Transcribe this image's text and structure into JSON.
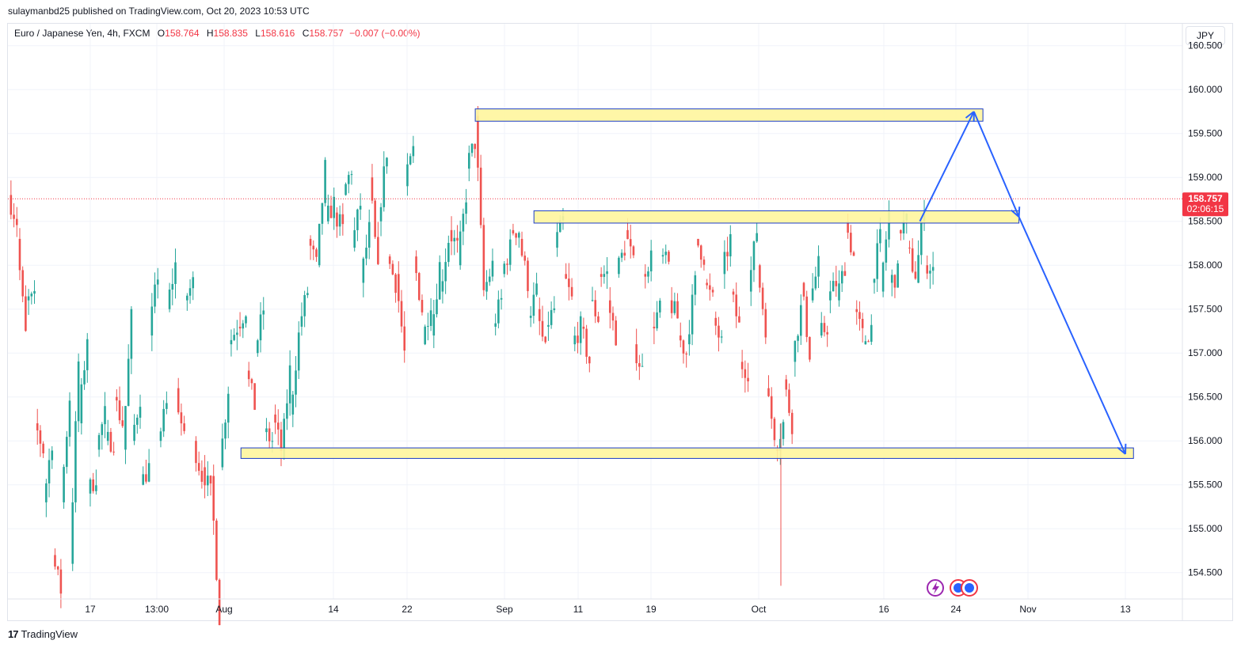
{
  "publisher_line": "sulaymanbd25 published on TradingView.com, Oct 20, 2023 10:53 UTC",
  "legend": {
    "symbol": "Euro / Japanese Yen, 4h, FXCM",
    "o_label": "O",
    "o_value": "158.764",
    "h_label": "H",
    "h_value": "158.835",
    "l_label": "L",
    "l_value": "158.616",
    "c_label": "C",
    "c_value": "158.757",
    "change": "−0.007 (−0.00%)"
  },
  "currency_button": "JPY",
  "price_label": {
    "price": "158.757",
    "countdown": "02:06:15"
  },
  "brand": {
    "logo": "17",
    "name": "TradingView"
  },
  "colors": {
    "up": "#26a69a",
    "down": "#ef5350",
    "zone_fill": "#fff59d",
    "zone_stroke": "#1a3cc8",
    "projection": "#2962ff",
    "price_line": "#f23645"
  },
  "icons": [
    "lightning-icon",
    "calendar-event-icon",
    "calendar-event-icon"
  ],
  "chart_data": {
    "type": "candlestick",
    "symbol": "EURJPY",
    "timeframe": "4h",
    "y_range": [
      154.2,
      160.75
    ],
    "y_ticks": [
      "160.500",
      "160.000",
      "159.500",
      "159.000",
      "158.500",
      "158.000",
      "157.500",
      "157.000",
      "156.500",
      "156.000",
      "155.500",
      "155.000",
      "154.500"
    ],
    "x_ticks": [
      "17",
      "13:00",
      "Aug",
      "14",
      "22",
      "Sep",
      "11",
      "19",
      "Oct",
      "16",
      "24",
      "Nov",
      "13"
    ],
    "last_price": 158.757,
    "path_points": [
      [
        158.8,
        158.5
      ],
      [
        158.3,
        157.2
      ],
      [
        157.6,
        157.6
      ],
      [
        156.2,
        155.9
      ],
      [
        155.3,
        156.0
      ],
      [
        154.7,
        154.3
      ],
      [
        155.3,
        156.5
      ],
      [
        154.6,
        156.9
      ],
      [
        156.2,
        157.2
      ],
      [
        155.4,
        155.6
      ],
      [
        155.9,
        156.3
      ],
      [
        156.0,
        156.0
      ],
      [
        156.5,
        156.2
      ],
      [
        155.9,
        157.4
      ],
      [
        156.0,
        156.5
      ],
      [
        155.5,
        155.7
      ],
      [
        157.2,
        157.9
      ],
      [
        156.0,
        156.4
      ],
      [
        157.5,
        158.0
      ],
      [
        156.6,
        156.0
      ],
      [
        157.6,
        157.8
      ],
      [
        156.0,
        155.6
      ],
      [
        155.7,
        155.4
      ],
      [
        155.6,
        154.0
      ],
      [
        155.7,
        156.6
      ],
      [
        157.1,
        157.3
      ],
      [
        157.3,
        157.5
      ],
      [
        156.8,
        156.4
      ],
      [
        157.0,
        157.5
      ],
      [
        156.1,
        156.0
      ],
      [
        156.3,
        155.9
      ],
      [
        155.8,
        156.8
      ],
      [
        156.3,
        157.2
      ],
      [
        157.3,
        157.7
      ],
      [
        158.3,
        158.0
      ],
      [
        158.0,
        159.1
      ],
      [
        158.5,
        158.7
      ],
      [
        158.6,
        158.4
      ],
      [
        158.8,
        159.1
      ],
      [
        158.2,
        158.7
      ],
      [
        157.8,
        158.4
      ],
      [
        159.0,
        157.9
      ],
      [
        158.5,
        159.3
      ],
      [
        158.1,
        157.8
      ],
      [
        157.9,
        157.0
      ],
      [
        158.9,
        159.3
      ],
      [
        158.1,
        157.5
      ],
      [
        157.1,
        157.6
      ],
      [
        157.2,
        158.0
      ],
      [
        157.7,
        158.3
      ],
      [
        158.4,
        158.2
      ],
      [
        158.0,
        158.8
      ],
      [
        159.1,
        159.4
      ],
      [
        159.7,
        157.7
      ],
      [
        157.7,
        158.0
      ],
      [
        157.3,
        157.6
      ],
      [
        157.9,
        158.2
      ],
      [
        158.4,
        158.4
      ],
      [
        158.3,
        157.8
      ],
      [
        157.4,
        157.7
      ],
      [
        157.5,
        157.0
      ],
      [
        157.3,
        157.5
      ],
      [
        158.2,
        158.5
      ],
      [
        157.9,
        157.6
      ],
      [
        157.1,
        157.3
      ],
      [
        157.3,
        156.9
      ],
      [
        157.6,
        157.4
      ],
      [
        157.9,
        157.9
      ],
      [
        157.6,
        157.2
      ],
      [
        157.9,
        158.2
      ],
      [
        158.4,
        158.0
      ],
      [
        157.1,
        156.8
      ],
      [
        157.9,
        158.1
      ],
      [
        157.3,
        157.5
      ],
      [
        158.1,
        158.0
      ],
      [
        157.6,
        157.4
      ],
      [
        157.2,
        157.0
      ],
      [
        157.1,
        157.8
      ],
      [
        158.3,
        158.1
      ],
      [
        157.8,
        157.6
      ],
      [
        157.4,
        157.1
      ],
      [
        157.9,
        158.3
      ],
      [
        157.7,
        157.3
      ],
      [
        156.9,
        156.8
      ],
      [
        157.7,
        158.4
      ],
      [
        158.0,
        157.3
      ],
      [
        156.6,
        156.1
      ],
      [
        155.9,
        156.2
      ],
      [
        156.7,
        156.2
      ],
      [
        156.9,
        157.5
      ],
      [
        157.8,
        157.0
      ],
      [
        157.6,
        158.0
      ],
      [
        157.2,
        157.3
      ],
      [
        157.6,
        157.8
      ],
      [
        157.6,
        158.0
      ],
      [
        158.5,
        158.1
      ],
      [
        157.5,
        157.2
      ],
      [
        157.1,
        157.3
      ],
      [
        157.8,
        158.3
      ],
      [
        157.7,
        158.6
      ],
      [
        157.8,
        157.9
      ],
      [
        158.4,
        158.5
      ],
      [
        158.2,
        157.9
      ],
      [
        157.8,
        158.7
      ],
      [
        158.0,
        157.9
      ]
    ],
    "annotations": {
      "zones": [
        {
          "label": "upper-zone",
          "x_start": "Aug 29",
          "x_end": "Oct 27",
          "y_low": 159.64,
          "y_high": 159.78
        },
        {
          "label": "middle-zone",
          "x_start": "Sep 5",
          "x_end": "Oct 31",
          "y_low": 158.48,
          "y_high": 158.62
        },
        {
          "label": "lower-zone",
          "x_start": "Aug 3",
          "x_end": "Nov 14",
          "y_low": 155.8,
          "y_high": 155.92
        }
      ],
      "projection": [
        {
          "x": "Oct 20",
          "y": 158.5
        },
        {
          "x": "Oct 26",
          "y": 159.75
        },
        {
          "x": "Oct 31",
          "y": 158.55
        },
        {
          "x": "Nov 13",
          "y": 155.85
        }
      ]
    }
  }
}
